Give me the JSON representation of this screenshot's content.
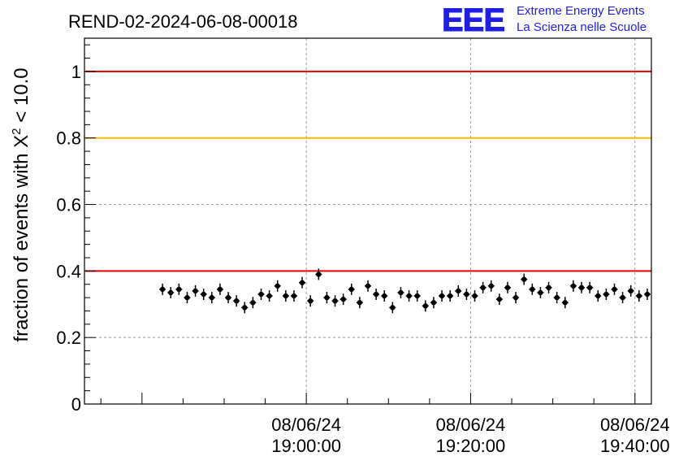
{
  "chart_data": {
    "type": "scatter",
    "title": "REND-02-2024-06-08-00018",
    "ylabel": "fraction of events with χ² < 10.0",
    "ylabel_parts": {
      "prefix": "fraction of events with X",
      "sup": "2",
      "suffix": " < 10.0"
    },
    "ylim": [
      0,
      1.1
    ],
    "y_ticks": [
      0,
      0.2,
      0.4,
      0.6,
      0.8,
      1
    ],
    "y_tick_labels": [
      "0",
      "0.2",
      "0.4",
      "0.6",
      "0.8",
      "1"
    ],
    "x_range_minutes": [
      -27,
      42
    ],
    "x_ticks": [
      {
        "minutes": 0,
        "date": "08/06/24",
        "time": "19:00:00"
      },
      {
        "minutes": 20,
        "date": "08/06/24",
        "time": "19:20:00"
      },
      {
        "minutes": 40,
        "date": "08/06/24",
        "time": "19:40:00"
      }
    ],
    "reference_lines": [
      {
        "y": 1.0,
        "color": "#dd0000"
      },
      {
        "y": 0.8,
        "color": "#ffbb00"
      },
      {
        "y": 0.4,
        "color": "#dd0000"
      }
    ],
    "grid": true,
    "series": [
      {
        "x_minutes": [
          -17.5,
          -16.5,
          -15.5,
          -14.5,
          -13.5,
          -12.5,
          -11.5,
          -10.5,
          -9.5,
          -8.5,
          -7.5,
          -6.5,
          -5.5,
          -4.5,
          -3.5,
          -2.5,
          -1.5,
          -0.5,
          0.5,
          1.5,
          2.5,
          3.5,
          4.5,
          5.5,
          6.5,
          7.5,
          8.5,
          9.5,
          10.5,
          11.5,
          12.5,
          13.5,
          14.5,
          15.5,
          16.5,
          17.5,
          18.5,
          19.5,
          20.5,
          21.5,
          22.5,
          23.5,
          24.5,
          25.5,
          26.5,
          27.5,
          28.5,
          29.5,
          30.5,
          31.5,
          32.5,
          33.5,
          34.5,
          35.5,
          36.5,
          37.5,
          38.5,
          39.5,
          40.5,
          41.5
        ],
        "values": [
          0.345,
          0.335,
          0.345,
          0.32,
          0.34,
          0.33,
          0.32,
          0.345,
          0.32,
          0.31,
          0.29,
          0.305,
          0.33,
          0.325,
          0.355,
          0.325,
          0.325,
          0.365,
          0.31,
          0.39,
          0.32,
          0.31,
          0.315,
          0.345,
          0.305,
          0.355,
          0.33,
          0.325,
          0.29,
          0.335,
          0.325,
          0.325,
          0.295,
          0.305,
          0.325,
          0.325,
          0.34,
          0.33,
          0.325,
          0.35,
          0.355,
          0.315,
          0.35,
          0.32,
          0.375,
          0.345,
          0.335,
          0.35,
          0.32,
          0.305,
          0.355,
          0.35,
          0.35,
          0.325,
          0.33,
          0.345,
          0.32,
          0.34,
          0.325,
          0.33
        ]
      }
    ]
  },
  "logo": {
    "mark": "EEE",
    "line1": "Extreme Energy Events",
    "line2": "La Scienza nelle Scuole"
  }
}
